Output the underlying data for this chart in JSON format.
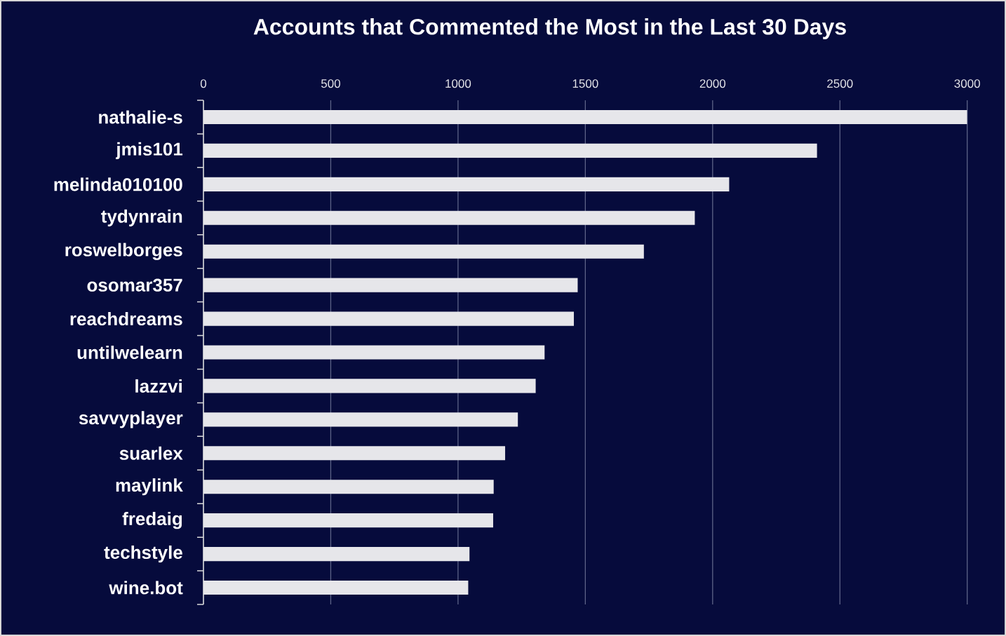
{
  "chart_data": {
    "type": "bar",
    "orientation": "horizontal",
    "title": "Accounts that Commented the Most in the Last 30 Days",
    "categories": [
      "nathalie-s",
      "jmis101",
      "melinda010100",
      "tydynrain",
      "roswelborges",
      "osomar357",
      "reachdreams",
      "untilwelearn",
      "lazzvi",
      "savvyplayer",
      "suarlex",
      "maylink",
      "fredaig",
      "techstyle",
      "wine.bot"
    ],
    "values": [
      3000,
      2410,
      2065,
      1930,
      1730,
      1470,
      1455,
      1340,
      1305,
      1235,
      1185,
      1140,
      1138,
      1045,
      1040
    ],
    "color": "#e6e6ea",
    "xlim": [
      0,
      3000
    ],
    "xticks": [
      0,
      500,
      1000,
      1500,
      2000,
      2500,
      3000
    ],
    "grid": "x"
  }
}
